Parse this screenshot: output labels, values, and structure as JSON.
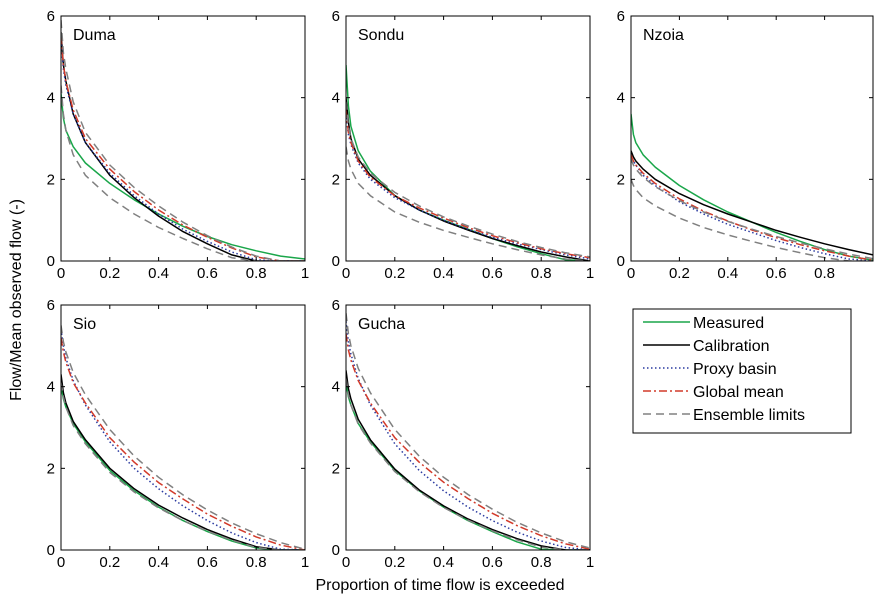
{
  "figure": {
    "xlabel": "Proportion of time flow is exceeded",
    "ylabel": "Flow/Mean observed flow (-)"
  },
  "legend": {
    "placement": "bottom-right",
    "items": [
      {
        "label": "Measured",
        "color": "#1aa64a",
        "style": "solid"
      },
      {
        "label": "Calibration",
        "color": "#000000",
        "style": "solid"
      },
      {
        "label": "Proxy basin",
        "color": "#2a3aa0",
        "style": "dotted"
      },
      {
        "label": "Global mean",
        "color": "#d23a2a",
        "style": "dashdot"
      },
      {
        "label": "Ensemble limits",
        "color": "#808080",
        "style": "dashed"
      }
    ]
  },
  "chart_data": [
    {
      "type": "line",
      "title": "Duma",
      "xlim": [
        0,
        1
      ],
      "ylim": [
        0,
        6
      ],
      "xticks": [
        "0",
        "0.2",
        "0.4",
        "0.6",
        "0.8",
        "1"
      ],
      "yticks": [
        "0",
        "2",
        "4",
        "6"
      ],
      "x": [
        0,
        0.01,
        0.02,
        0.05,
        0.1,
        0.2,
        0.3,
        0.4,
        0.5,
        0.6,
        0.7,
        0.8,
        0.9,
        1.0
      ],
      "series": [
        {
          "name": "Measured",
          "values": [
            4.1,
            3.5,
            3.2,
            2.8,
            2.4,
            1.9,
            1.5,
            1.15,
            0.85,
            0.6,
            0.4,
            0.25,
            0.12,
            0.05
          ]
        },
        {
          "name": "Calibration",
          "values": [
            5.6,
            4.8,
            4.4,
            3.6,
            2.9,
            2.1,
            1.55,
            1.1,
            0.72,
            0.42,
            0.15,
            0.0,
            0.0,
            0.0
          ]
        },
        {
          "name": "Proxy basin",
          "values": [
            5.4,
            4.7,
            4.3,
            3.6,
            2.9,
            2.15,
            1.6,
            1.15,
            0.78,
            0.48,
            0.22,
            0.03,
            0.0,
            0.0
          ]
        },
        {
          "name": "Global mean",
          "values": [
            5.5,
            4.8,
            4.4,
            3.7,
            3.0,
            2.25,
            1.7,
            1.25,
            0.88,
            0.58,
            0.32,
            0.1,
            0.0,
            0.0
          ]
        },
        {
          "name": "Ensemble limits",
          "values": [
            4.3,
            3.6,
            3.2,
            2.6,
            2.1,
            1.55,
            1.15,
            0.82,
            0.55,
            0.3,
            0.08,
            0.0,
            0.0,
            0.0
          ]
        },
        {
          "name": "Ensemble limits",
          "values": [
            5.9,
            5.1,
            4.7,
            3.9,
            3.15,
            2.35,
            1.8,
            1.35,
            0.95,
            0.62,
            0.34,
            0.12,
            0.0,
            0.0
          ]
        }
      ]
    },
    {
      "type": "line",
      "title": "Sondu",
      "xlim": [
        0,
        1
      ],
      "ylim": [
        0,
        6
      ],
      "xticks": [
        "0",
        "0.2",
        "0.4",
        "0.6",
        "0.8",
        "1"
      ],
      "yticks": [
        "0",
        "2",
        "4",
        "6"
      ],
      "x": [
        0,
        0.01,
        0.02,
        0.05,
        0.1,
        0.2,
        0.3,
        0.4,
        0.5,
        0.6,
        0.7,
        0.8,
        0.9,
        1.0
      ],
      "series": [
        {
          "name": "Measured",
          "values": [
            4.8,
            3.8,
            3.3,
            2.7,
            2.2,
            1.6,
            1.25,
            1.0,
            0.78,
            0.55,
            0.35,
            0.18,
            0.03,
            0.0
          ]
        },
        {
          "name": "Calibration",
          "values": [
            4.0,
            3.4,
            3.0,
            2.5,
            2.1,
            1.6,
            1.25,
            0.98,
            0.76,
            0.55,
            0.38,
            0.22,
            0.1,
            0.0
          ]
        },
        {
          "name": "Proxy basin",
          "values": [
            3.6,
            3.1,
            2.85,
            2.4,
            2.0,
            1.55,
            1.25,
            1.0,
            0.78,
            0.58,
            0.42,
            0.28,
            0.15,
            0.05
          ]
        },
        {
          "name": "Global mean",
          "values": [
            3.7,
            3.15,
            2.9,
            2.45,
            2.05,
            1.6,
            1.3,
            1.05,
            0.82,
            0.62,
            0.45,
            0.3,
            0.18,
            0.08
          ]
        },
        {
          "name": "Ensemble limits",
          "values": [
            2.8,
            2.45,
            2.25,
            1.9,
            1.6,
            1.2,
            0.95,
            0.75,
            0.58,
            0.42,
            0.28,
            0.15,
            0.05,
            0.0
          ]
        },
        {
          "name": "Ensemble limits",
          "values": [
            3.9,
            3.3,
            3.0,
            2.55,
            2.15,
            1.68,
            1.35,
            1.08,
            0.86,
            0.66,
            0.48,
            0.33,
            0.2,
            0.1
          ]
        }
      ]
    },
    {
      "type": "line",
      "title": "Nzoia",
      "xlim": [
        0,
        1
      ],
      "ylim": [
        0,
        6
      ],
      "xticks": [
        "0",
        "0.2",
        "0.4",
        "0.6",
        "0.8"
      ],
      "yticks": [
        "0",
        "2",
        "4",
        "6"
      ],
      "x": [
        0,
        0.01,
        0.02,
        0.05,
        0.1,
        0.2,
        0.3,
        0.4,
        0.5,
        0.6,
        0.7,
        0.8,
        0.9,
        1.0
      ],
      "series": [
        {
          "name": "Measured",
          "values": [
            3.6,
            3.1,
            2.9,
            2.6,
            2.3,
            1.85,
            1.5,
            1.2,
            0.95,
            0.7,
            0.48,
            0.28,
            0.12,
            0.02
          ]
        },
        {
          "name": "Calibration",
          "values": [
            2.7,
            2.55,
            2.45,
            2.25,
            2.0,
            1.65,
            1.38,
            1.15,
            0.95,
            0.75,
            0.58,
            0.42,
            0.28,
            0.15
          ]
        },
        {
          "name": "Proxy basin",
          "values": [
            2.6,
            2.45,
            2.35,
            2.1,
            1.85,
            1.45,
            1.15,
            0.9,
            0.7,
            0.5,
            0.33,
            0.18,
            0.05,
            0.0
          ]
        },
        {
          "name": "Global mean",
          "values": [
            2.6,
            2.45,
            2.35,
            2.15,
            1.9,
            1.52,
            1.22,
            0.98,
            0.76,
            0.57,
            0.4,
            0.25,
            0.12,
            0.02
          ]
        },
        {
          "name": "Ensemble limits",
          "values": [
            2.0,
            1.85,
            1.75,
            1.55,
            1.35,
            1.05,
            0.82,
            0.64,
            0.48,
            0.33,
            0.2,
            0.08,
            0.0,
            0.0
          ]
        },
        {
          "name": "Ensemble limits",
          "values": [
            2.5,
            2.35,
            2.25,
            2.05,
            1.82,
            1.48,
            1.2,
            0.97,
            0.78,
            0.6,
            0.44,
            0.3,
            0.17,
            0.06
          ]
        }
      ]
    },
    {
      "type": "line",
      "title": "Sio",
      "xlim": [
        0,
        1
      ],
      "ylim": [
        0,
        6
      ],
      "xticks": [
        "0",
        "0.2",
        "0.4",
        "0.6",
        "0.8",
        "1"
      ],
      "yticks": [
        "0",
        "2",
        "4",
        "6"
      ],
      "x": [
        0,
        0.01,
        0.02,
        0.05,
        0.1,
        0.2,
        0.3,
        0.4,
        0.5,
        0.6,
        0.7,
        0.8,
        0.9,
        1.0
      ],
      "series": [
        {
          "name": "Measured",
          "values": [
            4.0,
            3.7,
            3.5,
            3.1,
            2.65,
            1.95,
            1.45,
            1.05,
            0.72,
            0.45,
            0.22,
            0.05,
            0.0,
            0.0
          ]
        },
        {
          "name": "Calibration",
          "values": [
            4.3,
            3.85,
            3.6,
            3.15,
            2.7,
            2.0,
            1.5,
            1.1,
            0.78,
            0.5,
            0.27,
            0.08,
            0.0,
            0.0
          ]
        },
        {
          "name": "Proxy basin",
          "values": [
            5.4,
            5.0,
            4.7,
            4.15,
            3.55,
            2.65,
            2.0,
            1.5,
            1.08,
            0.72,
            0.42,
            0.18,
            0.02,
            0.0
          ]
        },
        {
          "name": "Global mean",
          "values": [
            5.2,
            4.85,
            4.6,
            4.1,
            3.6,
            2.75,
            2.15,
            1.65,
            1.25,
            0.88,
            0.58,
            0.32,
            0.12,
            0.0
          ]
        },
        {
          "name": "Ensemble limits",
          "values": [
            4.1,
            3.75,
            3.5,
            3.05,
            2.6,
            1.9,
            1.42,
            1.03,
            0.72,
            0.46,
            0.24,
            0.06,
            0.0,
            0.0
          ]
        },
        {
          "name": "Ensemble limits",
          "values": [
            5.5,
            5.1,
            4.85,
            4.35,
            3.8,
            2.95,
            2.3,
            1.78,
            1.35,
            0.98,
            0.66,
            0.4,
            0.18,
            0.02
          ]
        }
      ]
    },
    {
      "type": "line",
      "title": "Gucha",
      "xlim": [
        0,
        1
      ],
      "ylim": [
        0,
        6
      ],
      "xticks": [
        "0",
        "0.2",
        "0.4",
        "0.6",
        "0.8",
        "1"
      ],
      "yticks": [
        "0",
        "2",
        "4",
        "6"
      ],
      "x": [
        0,
        0.01,
        0.02,
        0.05,
        0.1,
        0.2,
        0.3,
        0.4,
        0.5,
        0.6,
        0.7,
        0.8,
        0.9,
        1.0
      ],
      "series": [
        {
          "name": "Measured",
          "values": [
            4.1,
            3.75,
            3.55,
            3.1,
            2.65,
            1.95,
            1.45,
            1.05,
            0.72,
            0.45,
            0.2,
            0.02,
            0.0,
            0.0
          ]
        },
        {
          "name": "Calibration",
          "values": [
            4.4,
            3.95,
            3.7,
            3.2,
            2.7,
            1.98,
            1.47,
            1.08,
            0.76,
            0.5,
            0.28,
            0.1,
            0.0,
            0.0
          ]
        },
        {
          "name": "Proxy basin",
          "values": [
            5.6,
            5.1,
            4.8,
            4.2,
            3.55,
            2.6,
            1.95,
            1.45,
            1.05,
            0.72,
            0.44,
            0.22,
            0.06,
            0.0
          ]
        },
        {
          "name": "Global mean",
          "values": [
            5.3,
            4.9,
            4.65,
            4.15,
            3.6,
            2.75,
            2.15,
            1.66,
            1.26,
            0.9,
            0.6,
            0.35,
            0.15,
            0.02
          ]
        },
        {
          "name": "Ensemble limits",
          "values": [
            4.2,
            3.8,
            3.55,
            3.08,
            2.62,
            1.92,
            1.43,
            1.04,
            0.73,
            0.47,
            0.25,
            0.07,
            0.0,
            0.0
          ]
        },
        {
          "name": "Ensemble limits",
          "values": [
            5.8,
            5.3,
            5.0,
            4.45,
            3.85,
            2.95,
            2.3,
            1.78,
            1.36,
            1.0,
            0.68,
            0.42,
            0.2,
            0.05
          ]
        }
      ]
    }
  ]
}
